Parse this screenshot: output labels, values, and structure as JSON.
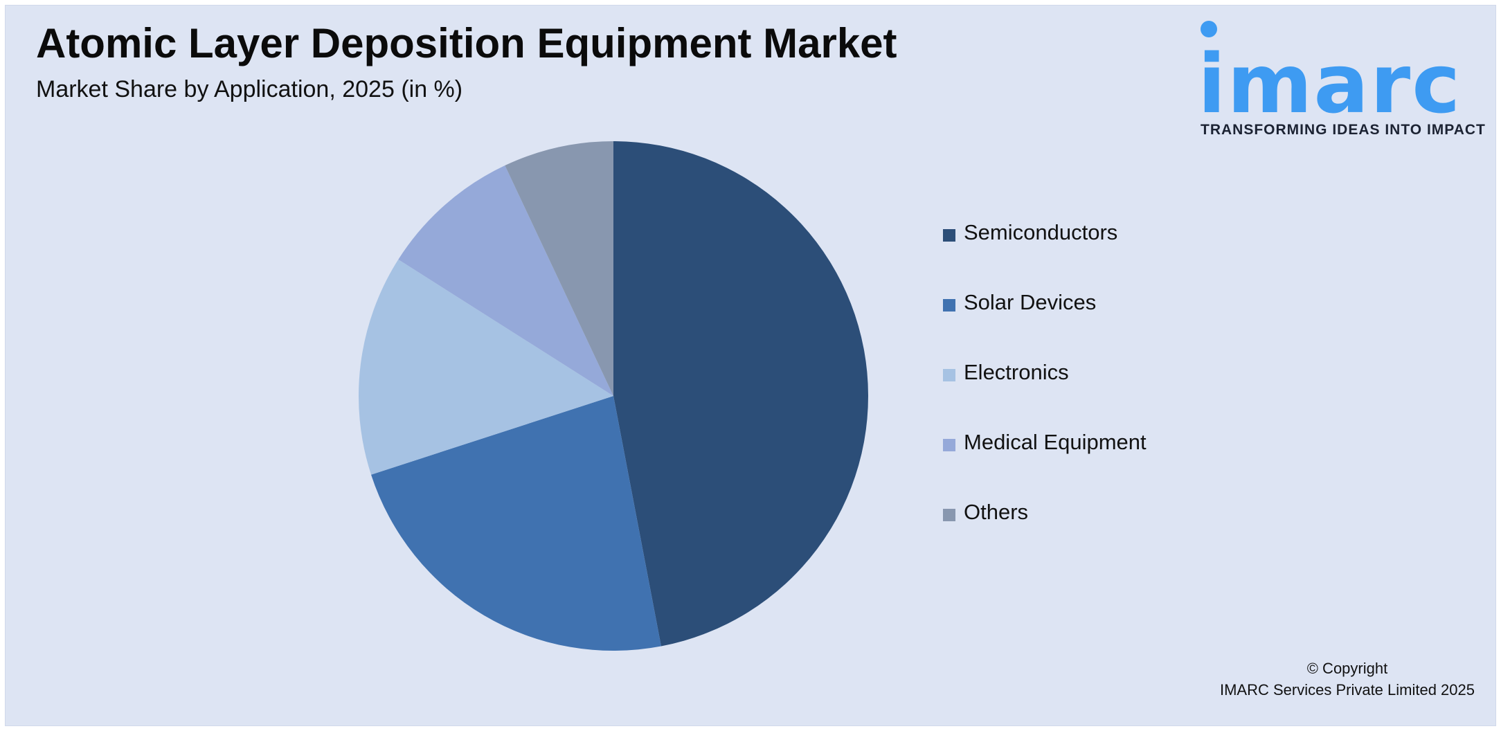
{
  "header": {
    "title": "Atomic Layer Deposition Equipment Market",
    "subtitle": "Market Share by Application, 2025 (in %)"
  },
  "logo": {
    "wordmark": "imarc",
    "tagline": "TRANSFORMING IDEAS INTO IMPACT",
    "color": "#3e9bf2"
  },
  "chart_data": {
    "type": "pie",
    "title": "Atomic Layer Deposition Equipment Market",
    "subtitle": "Market Share by Application, 2025 (in %)",
    "legend_position": "right",
    "start_angle": "12 o'clock",
    "direction": "clockwise",
    "slices": [
      {
        "label": "Semiconductors",
        "value": 47,
        "color": "#2c4e78"
      },
      {
        "label": "Solar Devices",
        "value": 23,
        "color": "#4072b0"
      },
      {
        "label": "Electronics",
        "value": 14,
        "color": "#a6c2e3"
      },
      {
        "label": "Medical Equipment",
        "value": 9,
        "color": "#95a9d9"
      },
      {
        "label": "Others",
        "value": 7,
        "color": "#8897af"
      }
    ]
  },
  "footer": {
    "copyright_line1": "© Copyright",
    "copyright_line2": "IMARC Services Private Limited 2025"
  }
}
